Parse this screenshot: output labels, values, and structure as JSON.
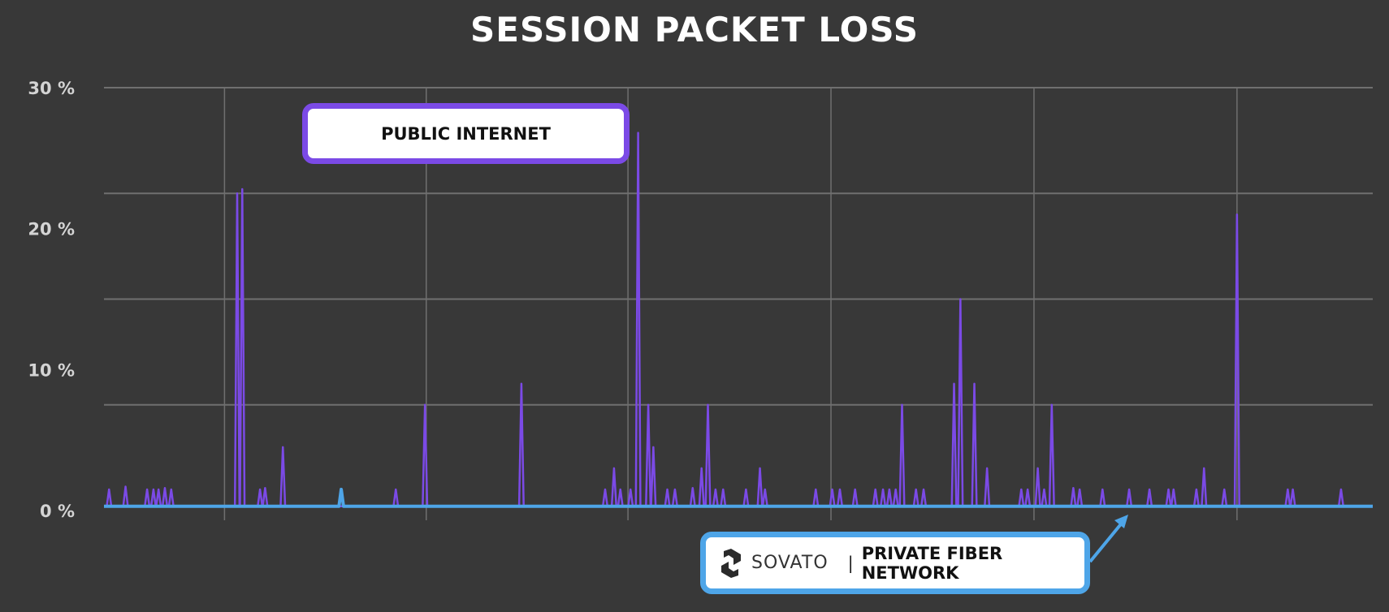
{
  "title": "SESSION PACKET LOSS",
  "colors": {
    "background": "#383838",
    "grid": "#6f6f6f",
    "public_internet": "#7b4ae6",
    "private_fiber": "#4ea5e8"
  },
  "callouts": {
    "public_internet": "PUBLIC INTERNET",
    "sovato_brand": "SOVATO",
    "separator": "|",
    "private_fiber": "PRIVATE FIBER NETWORK",
    "logo_icon": "sovato-s-icon",
    "arrow_icon": "arrow-up-right-icon"
  },
  "chart_data": {
    "type": "line",
    "title": "SESSION PACKET LOSS",
    "xlabel": "",
    "ylabel": "",
    "ylim": [
      0,
      30
    ],
    "yticks": [
      0,
      10,
      20,
      30
    ],
    "ytick_labels": [
      "0 %",
      "10 %",
      "20 %",
      "30 %"
    ],
    "xlim": [
      0,
      100
    ],
    "grid": true,
    "series": [
      {
        "name": "PUBLIC INTERNET",
        "color": "#7b4ae6",
        "spikes": [
          [
            0.4,
            1.5
          ],
          [
            1.7,
            1.7
          ],
          [
            3.4,
            1.5
          ],
          [
            3.9,
            1.5
          ],
          [
            4.3,
            1.5
          ],
          [
            4.8,
            1.6
          ],
          [
            5.3,
            1.5
          ],
          [
            10.5,
            22.5
          ],
          [
            10.9,
            22.8
          ],
          [
            12.3,
            1.5
          ],
          [
            12.7,
            1.6
          ],
          [
            14.1,
            4.5
          ],
          [
            23.0,
            1.5
          ],
          [
            25.3,
            7.5
          ],
          [
            32.9,
            9.0
          ],
          [
            39.5,
            1.5
          ],
          [
            40.2,
            3.0
          ],
          [
            40.7,
            1.5
          ],
          [
            41.5,
            1.5
          ],
          [
            42.1,
            26.8
          ],
          [
            42.9,
            7.5
          ],
          [
            43.3,
            4.5
          ],
          [
            44.4,
            1.5
          ],
          [
            45.0,
            1.5
          ],
          [
            46.4,
            1.6
          ],
          [
            47.1,
            3.0
          ],
          [
            47.6,
            7.5
          ],
          [
            48.2,
            1.5
          ],
          [
            48.8,
            1.5
          ],
          [
            50.6,
            1.5
          ],
          [
            51.7,
            3.0
          ],
          [
            52.1,
            1.5
          ],
          [
            56.1,
            1.5
          ],
          [
            57.4,
            1.5
          ],
          [
            58.0,
            1.5
          ],
          [
            59.2,
            1.5
          ],
          [
            60.8,
            1.5
          ],
          [
            61.4,
            1.5
          ],
          [
            61.9,
            1.5
          ],
          [
            62.4,
            1.5
          ],
          [
            62.9,
            7.5
          ],
          [
            64.0,
            1.5
          ],
          [
            64.6,
            1.5
          ],
          [
            67.0,
            9.0
          ],
          [
            67.5,
            15.0
          ],
          [
            68.6,
            9.0
          ],
          [
            69.6,
            3.0
          ],
          [
            72.3,
            1.5
          ],
          [
            72.8,
            1.5
          ],
          [
            73.6,
            3.0
          ],
          [
            74.1,
            1.5
          ],
          [
            74.7,
            7.5
          ],
          [
            76.4,
            1.6
          ],
          [
            76.9,
            1.5
          ],
          [
            78.7,
            1.5
          ],
          [
            80.8,
            1.5
          ],
          [
            82.4,
            1.5
          ],
          [
            83.9,
            1.5
          ],
          [
            84.3,
            1.5
          ],
          [
            86.1,
            1.5
          ],
          [
            86.7,
            3.0
          ],
          [
            88.3,
            1.5
          ],
          [
            89.3,
            21.0
          ],
          [
            93.3,
            1.5
          ],
          [
            93.7,
            1.5
          ],
          [
            97.5,
            1.5
          ]
        ]
      },
      {
        "name": "PRIVATE FIBER NETWORK",
        "color": "#4ea5e8",
        "baseline": 0.3,
        "spikes": [
          [
            18.7,
            1.5
          ]
        ]
      }
    ]
  }
}
